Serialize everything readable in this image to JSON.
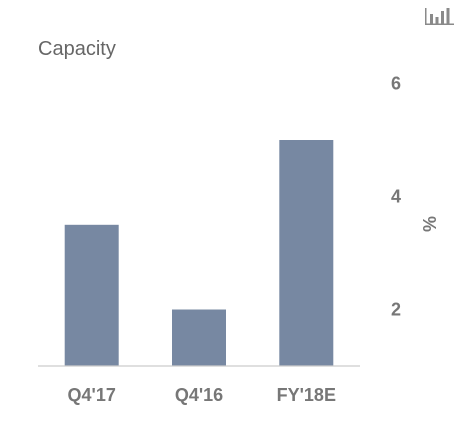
{
  "chart_data": {
    "type": "bar",
    "title": "Capacity",
    "categories": [
      "Q4'17",
      "Q4'16",
      "FY'18E"
    ],
    "values": [
      3.5,
      2.0,
      5.0
    ],
    "xlabel": "",
    "ylabel": "%",
    "ylim": [
      1,
      6
    ],
    "yticks": [
      2,
      4,
      6
    ],
    "y_axis_side": "right",
    "grid": false,
    "bar_color": "#7788a2",
    "baseline_color": "#cccccc"
  },
  "toolbar": {
    "chart_icon": "bar-chart-icon"
  }
}
